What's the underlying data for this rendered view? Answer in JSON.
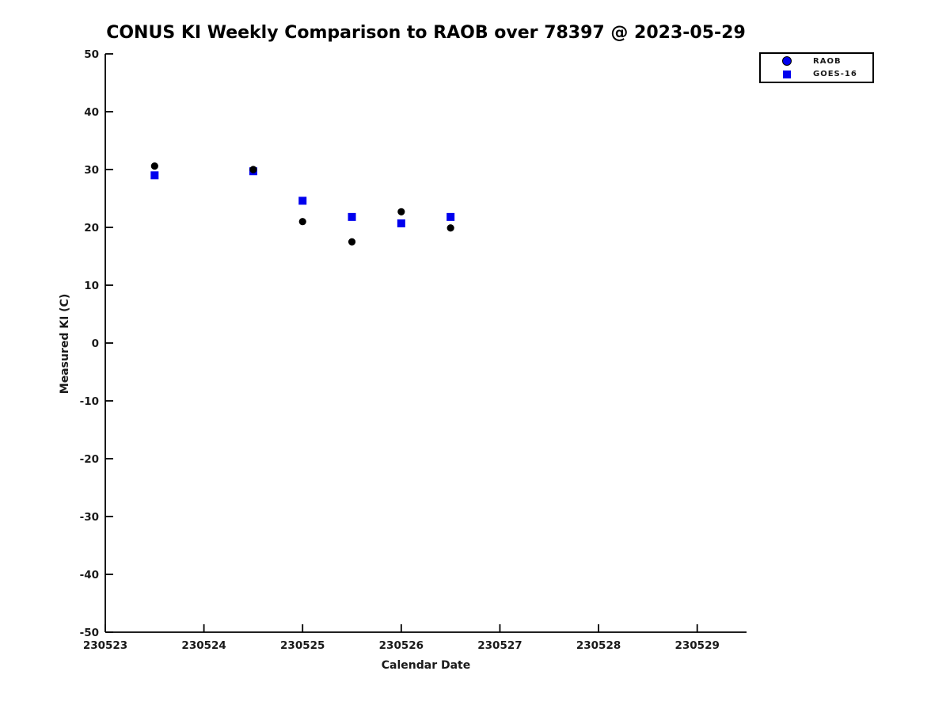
{
  "title": "CONUS KI Weekly Comparison to RAOB over 78397 @ 2023-05-29",
  "legend": {
    "items": [
      {
        "label": "RAOB",
        "marker": "circle-icon"
      },
      {
        "label": "GOES-16",
        "marker": "square-icon"
      }
    ]
  },
  "colors": {
    "raob_marker": "#000000",
    "goes_marker": "#0000EE",
    "legend_raob_fill": "#0000EE",
    "axis": "#000000"
  },
  "chart_data": {
    "type": "scatter",
    "title": "CONUS KI Weekly Comparison to RAOB over 78397 @ 2023-05-29",
    "xlabel": "Calendar Date",
    "ylabel": "Measured KI (C)",
    "xlim": [
      230523,
      230529.5
    ],
    "ylim": [
      -50,
      50
    ],
    "x_ticks": [
      230523,
      230524,
      230525,
      230526,
      230527,
      230528,
      230529
    ],
    "y_ticks": [
      50,
      40,
      30,
      20,
      10,
      0,
      -10,
      -20,
      -30,
      -40,
      -50
    ],
    "grid": false,
    "legend_position": "top-right",
    "series": [
      {
        "name": "RAOB",
        "marker": "circle",
        "color": "#000000",
        "x": [
          230523.5,
          230524.5,
          230525.0,
          230525.5,
          230526.0,
          230526.5
        ],
        "y": [
          30.6,
          30.0,
          21.0,
          17.5,
          22.7,
          19.9
        ]
      },
      {
        "name": "GOES-16",
        "marker": "square",
        "color": "#0000EE",
        "x": [
          230523.5,
          230524.5,
          230525.0,
          230525.5,
          230526.0,
          230526.5
        ],
        "y": [
          29.0,
          29.7,
          24.6,
          21.8,
          20.7,
          21.8
        ]
      }
    ]
  }
}
